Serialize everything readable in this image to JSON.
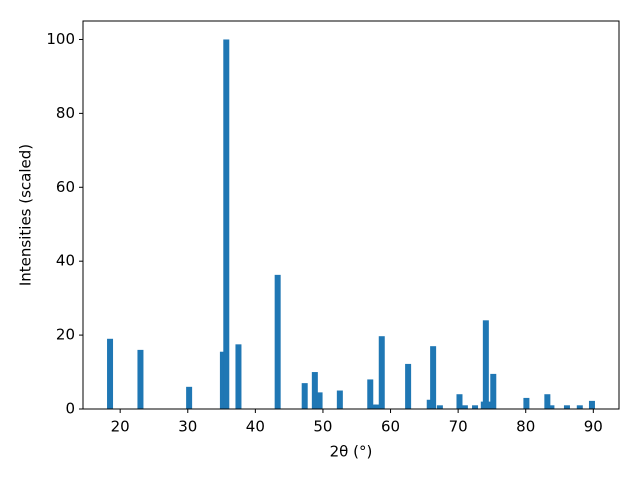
{
  "chart_data": {
    "type": "bar",
    "xlabel": "2θ (°)",
    "ylabel": "Intensities (scaled)",
    "color": "#1f77b4",
    "x": [
      18.5,
      23,
      30.2,
      35.2,
      35.7,
      37.5,
      43.3,
      47.3,
      48.8,
      49.5,
      52.5,
      57,
      57.5,
      58,
      58.7,
      62.6,
      65.8,
      66.3,
      67.3,
      70.2,
      71,
      72.5,
      73.8,
      74.1,
      74.7,
      75.2,
      80.1,
      83.2,
      83.8,
      86.1,
      88,
      89.8
    ],
    "values": [
      19,
      16,
      6,
      15.5,
      100,
      17.5,
      36.3,
      7,
      10,
      4.5,
      5,
      8,
      1.2,
      1.2,
      19.7,
      12.2,
      2.5,
      17,
      1,
      4,
      1,
      1,
      2,
      24,
      2,
      9.5,
      3,
      4,
      1,
      1,
      1,
      2.2
    ],
    "xlim": [
      14.5,
      93.8
    ],
    "xticks": [
      20,
      30,
      40,
      50,
      60,
      70,
      80,
      90
    ],
    "ylim": [
      0,
      105
    ],
    "yticks": [
      0,
      20,
      40,
      60,
      80,
      100
    ]
  }
}
